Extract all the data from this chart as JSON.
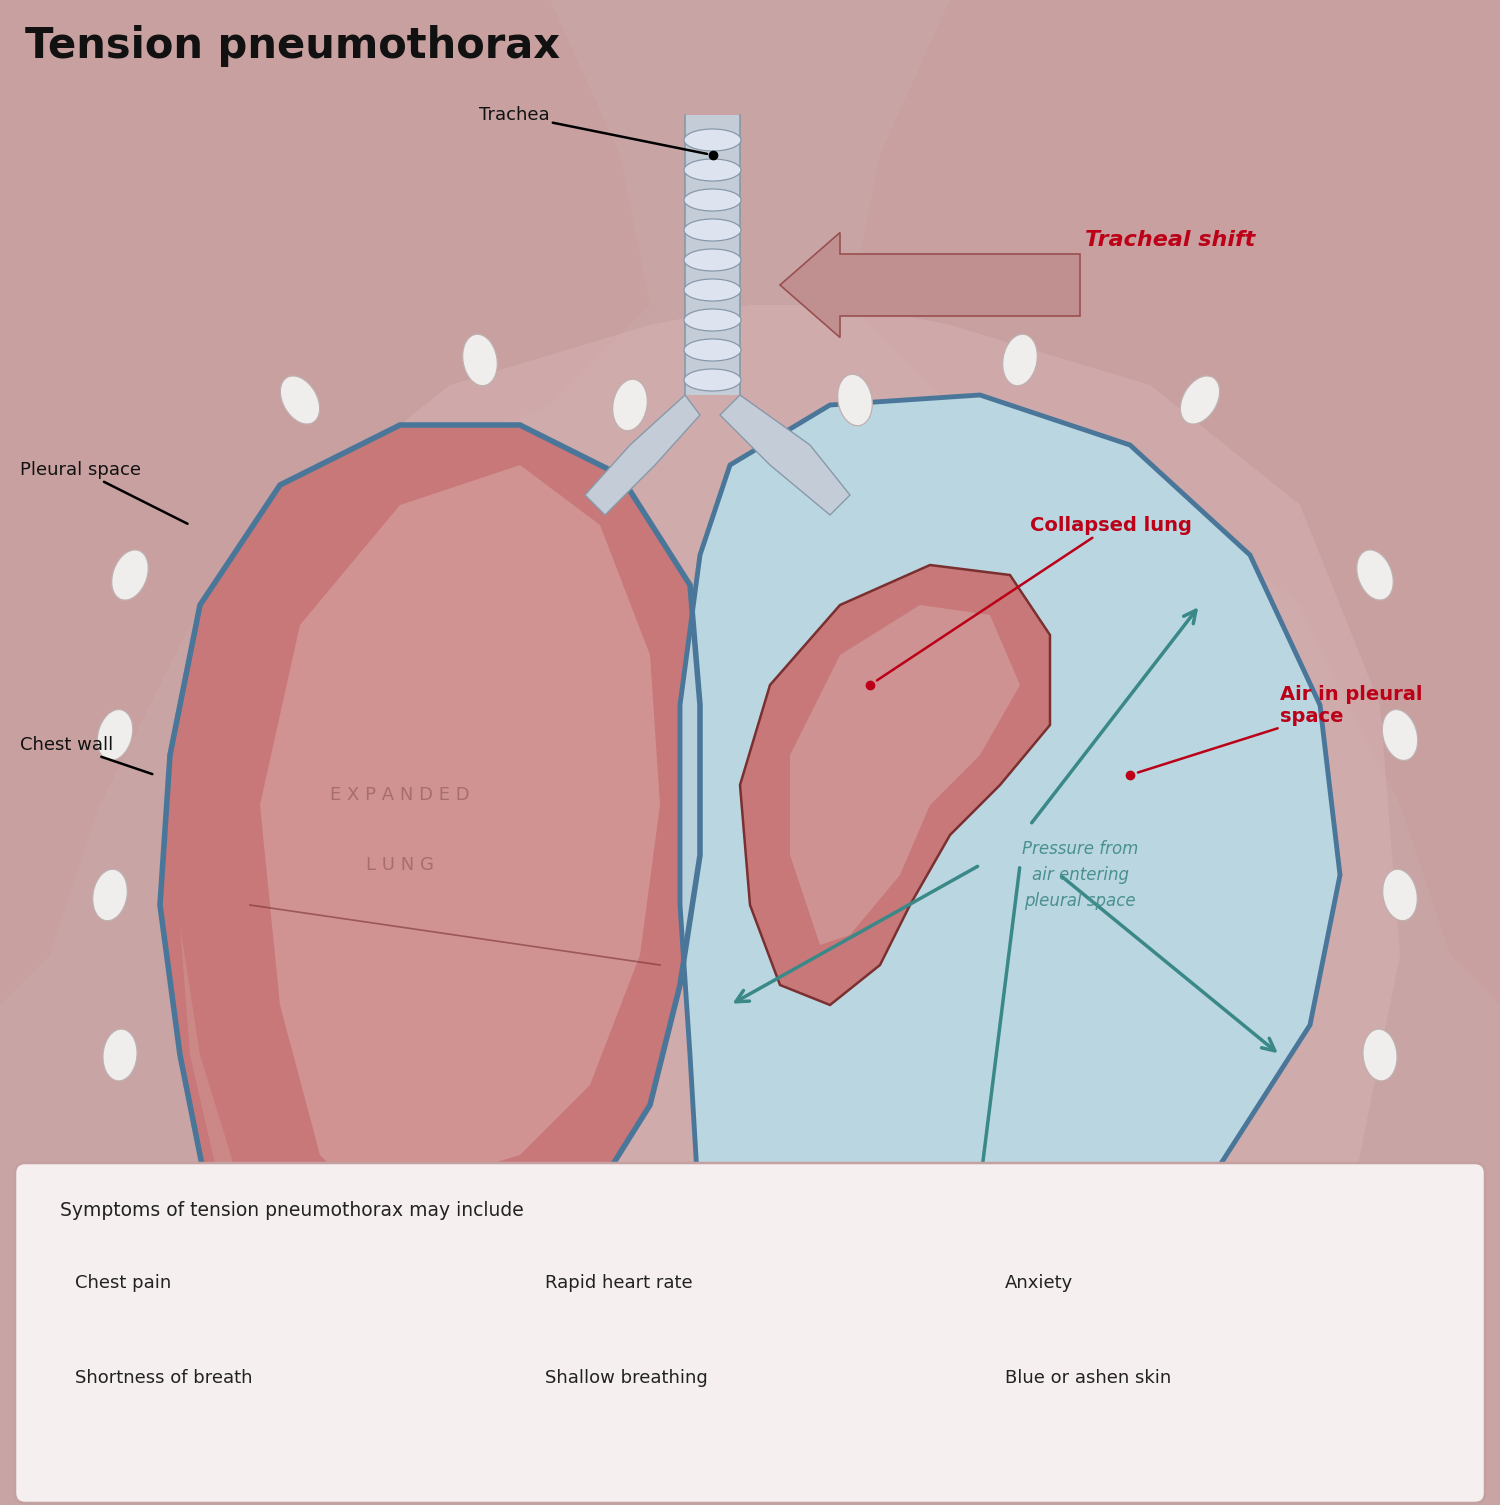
{
  "title": "Tension pneumothorax",
  "title_fontsize": 30,
  "title_color": "#111111",
  "title_weight": "bold",
  "bg_color": "#c8a4a4",
  "expanded_lung_fill": "#c87878",
  "expanded_lung_light": "#d4a0a0",
  "collapsed_lung_fill": "#c87878",
  "pleural_fill": "#b8dce8",
  "trachea_fill": "#c4ccd8",
  "outline_dark": "#7a3030",
  "outline_blue": "#4a7799",
  "rib_white": "#f0eded",
  "label_black": "#111111",
  "label_red": "#bb0018",
  "label_teal": "#4a9090",
  "arrow_teal": "#3a8888",
  "box_bg": "#f5efef",
  "box_border": "#c4a0a0",
  "symptoms_header": "Symptoms of tension pneumothorax may include",
  "symptoms_col1": [
    "Chest pain",
    "Shortness of breath"
  ],
  "symptoms_col2": [
    "Rapid heart rate",
    "Shallow breathing"
  ],
  "symptoms_col3": [
    "Anxiety",
    "Blue or ashen skin"
  ],
  "label_trachea": "Trachea",
  "label_pleural": "Pleural space",
  "label_chest": "Chest wall",
  "label_expanded_1": "E X P A N D E D",
  "label_expanded_2": "L U N G",
  "label_tracheal_shift": "Tracheal shift",
  "label_collapsed": "Collapsed lung",
  "label_air": "Air in pleural\nspace",
  "label_pressure": "Pressure from\nair entering\npleural space"
}
